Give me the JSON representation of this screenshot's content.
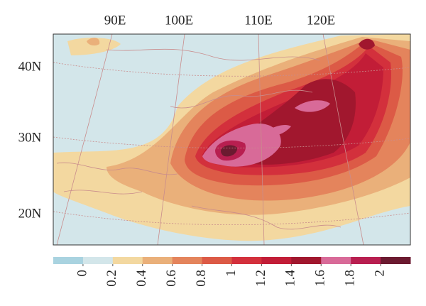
{
  "map": {
    "lon_labels": [
      "90E",
      "100E",
      "110E",
      "120E"
    ],
    "lat_labels": [
      "40N",
      "30N",
      "20N"
    ]
  },
  "colorbar": {
    "ticks": [
      0,
      0.2,
      0.4,
      0.6,
      0.8,
      1,
      1.2,
      1.4,
      1.6,
      1.8,
      2
    ],
    "colors": [
      "#a9d3e0",
      "#d3e6ea",
      "#f3d8a0",
      "#eab07a",
      "#e4845c",
      "#dc5a46",
      "#d3303c",
      "#c21d37",
      "#a1172e",
      "#d86a98",
      "#b81f50",
      "#6b1a30"
    ]
  }
}
